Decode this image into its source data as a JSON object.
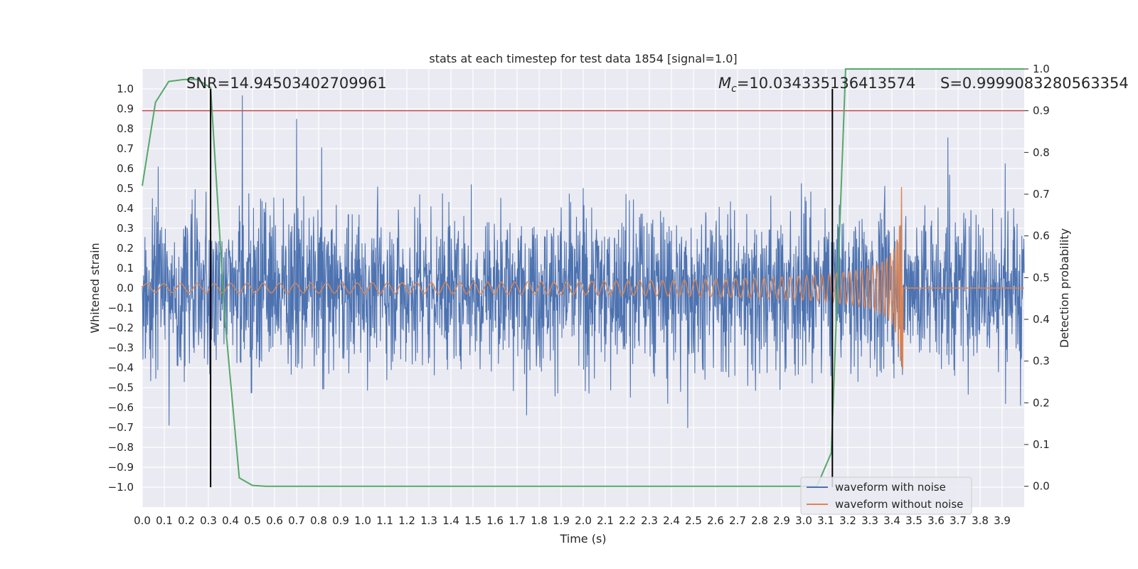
{
  "chart_data": {
    "type": "line",
    "title": "stats at each timestep for test data 1854 [signal=1.0]",
    "xlabel": "Time (s)",
    "ylabel": "Whitened strain",
    "y2label": "Detection probability",
    "xlim": [
      0.0,
      4.0
    ],
    "ylim": [
      -1.1,
      1.1
    ],
    "y2lim": [
      -0.05,
      1.0
    ],
    "xticks": [
      "0.0",
      "0.1",
      "0.2",
      "0.3",
      "0.4",
      "0.5",
      "0.6",
      "0.7",
      "0.8",
      "0.9",
      "1.0",
      "1.1",
      "1.2",
      "1.3",
      "1.4",
      "1.5",
      "1.6",
      "1.7",
      "1.8",
      "1.9",
      "2.0",
      "2.1",
      "2.2",
      "2.3",
      "2.4",
      "2.5",
      "2.6",
      "2.7",
      "2.8",
      "2.9",
      "3.0",
      "3.1",
      "3.2",
      "3.3",
      "3.4",
      "3.5",
      "3.6",
      "3.7",
      "3.8",
      "3.9"
    ],
    "yticks": [
      "1.0",
      "0.9",
      "0.8",
      "0.7",
      "0.6",
      "0.5",
      "0.4",
      "0.3",
      "0.2",
      "0.1",
      "0.0",
      "−0.1",
      "−0.2",
      "−0.3",
      "−0.4",
      "−0.5",
      "−0.6",
      "−0.7",
      "−0.8",
      "−0.9",
      "−1.0"
    ],
    "y2ticks": [
      "1.0",
      "0.9",
      "0.8",
      "0.7",
      "0.6",
      "0.5",
      "0.4",
      "0.3",
      "0.2",
      "0.1",
      "0.0"
    ],
    "annotations": {
      "snr": "SNR=14.94503402709961",
      "mc_symbol": "M",
      "mc_sub": "c",
      "mc_value": "=10.034335136413574",
      "s": "S=0.9999083280563354"
    },
    "threshold": {
      "value": 0.9,
      "axis": "y2",
      "color": "#c44e52"
    },
    "vlines": [
      0.31,
      3.13
    ],
    "series": [
      {
        "name": "waveform with noise",
        "color": "#4c72b0",
        "kind": "noise",
        "amplitude": 0.4,
        "start": 0.0,
        "end": 4.0
      },
      {
        "name": "waveform without noise",
        "color": "#dd8452",
        "kind": "chirp",
        "t_merge": 3.45,
        "peak": 0.58
      },
      {
        "name": "Detection probability",
        "color": "#55a868",
        "axis": "y2",
        "x": [
          0.0,
          0.06,
          0.12,
          0.19,
          0.25,
          0.31,
          0.375,
          0.44,
          0.5,
          0.56,
          3.06,
          3.125,
          3.19,
          3.25,
          3.31,
          3.375,
          3.44,
          3.5,
          3.56,
          3.625,
          3.69,
          3.75,
          3.81,
          3.875,
          3.94,
          4.0
        ],
        "values": [
          0.72,
          0.92,
          0.97,
          0.975,
          0.975,
          0.955,
          0.4,
          0.02,
          0.002,
          0.0,
          0.0,
          0.08,
          1.0,
          1.0,
          1.0,
          1.0,
          1.0,
          1.0,
          1.0,
          1.0,
          1.0,
          1.0,
          1.0,
          1.0,
          1.0,
          1.0
        ]
      }
    ],
    "legend": {
      "location": "lower-right",
      "entries": [
        "waveform with noise",
        "waveform without noise"
      ]
    },
    "grid": true
  }
}
